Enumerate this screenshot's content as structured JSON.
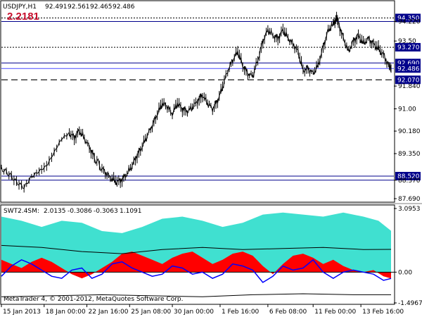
{
  "chart_data": [
    {
      "type": "candlestick",
      "header": {
        "symbol_tf": "USDJPY,H1",
        "ohlc": [
          "92.491",
          "92.561",
          "92.465",
          "92.486"
        ],
        "big_value": "2.2181"
      },
      "ylim": [
        87.69,
        94.7
      ],
      "y_ticks": [
        {
          "value": 94.35,
          "label": "94.350",
          "box": true
        },
        {
          "value": 94.22,
          "label": "94.220",
          "box": false
        },
        {
          "value": 93.5,
          "label": "93.50",
          "box": false
        },
        {
          "value": 93.27,
          "label": "93.270",
          "box": true
        },
        {
          "value": 92.69,
          "label": "92.690",
          "box": true
        },
        {
          "value": 92.486,
          "label": "92.486",
          "box": true
        },
        {
          "value": 92.07,
          "label": "92.070",
          "box": true
        },
        {
          "value": 91.84,
          "label": "91.840",
          "box": false
        },
        {
          "value": 91.0,
          "label": "91.00",
          "box": false
        },
        {
          "value": 90.18,
          "label": "90.180",
          "box": false
        },
        {
          "value": 89.35,
          "label": "89.350",
          "box": false
        },
        {
          "value": 88.52,
          "label": "88.520",
          "box": true
        },
        {
          "value": 88.37,
          "label": "88.370",
          "box": false
        },
        {
          "value": 87.69,
          "label": "87.690",
          "box": false
        }
      ],
      "levels": [
        {
          "value": 94.35,
          "style": "dotted",
          "color": "#000000"
        },
        {
          "value": 94.22,
          "style": "solid",
          "color": "#00008b"
        },
        {
          "value": 93.27,
          "style": "dotted",
          "color": "#000000"
        },
        {
          "value": 92.69,
          "style": "solid",
          "color": "#00008b"
        },
        {
          "value": 92.486,
          "style": "solid",
          "color": "#4a4aff"
        },
        {
          "value": 92.07,
          "style": "dashed",
          "color": "#000000"
        },
        {
          "value": 88.52,
          "style": "solid",
          "color": "#00008b"
        },
        {
          "value": 88.37,
          "style": "solid",
          "color": "#00008b"
        }
      ],
      "price_path": [
        [
          0,
          88.8
        ],
        [
          3,
          88.6
        ],
        [
          6,
          88.3
        ],
        [
          9,
          88.1
        ],
        [
          12,
          88.5
        ],
        [
          15,
          88.7
        ],
        [
          18,
          88.9
        ],
        [
          21,
          89.4
        ],
        [
          24,
          89.9
        ],
        [
          27,
          90.1
        ],
        [
          29,
          89.95
        ],
        [
          31,
          90.2
        ],
        [
          33,
          89.9
        ],
        [
          35,
          89.6
        ],
        [
          37,
          89.2
        ],
        [
          40,
          88.8
        ],
        [
          42,
          88.6
        ],
        [
          44,
          88.4
        ],
        [
          46,
          88.3
        ],
        [
          48,
          88.4
        ],
        [
          50,
          88.6
        ],
        [
          52,
          88.9
        ],
        [
          54,
          89.3
        ],
        [
          56,
          89.6
        ],
        [
          58,
          90.0
        ],
        [
          60,
          90.4
        ],
        [
          62,
          90.8
        ],
        [
          64,
          91.2
        ],
        [
          66,
          91.1
        ],
        [
          68,
          90.8
        ],
        [
          70,
          91.2
        ],
        [
          72,
          91.0
        ],
        [
          74,
          90.9
        ],
        [
          76,
          91.05
        ],
        [
          78,
          91.3
        ],
        [
          80,
          91.5
        ],
        [
          82,
          91.2
        ],
        [
          84,
          91.0
        ],
        [
          86,
          91.3
        ],
        [
          88,
          91.8
        ],
        [
          90,
          92.4
        ],
        [
          92,
          92.8
        ],
        [
          94,
          93.1
        ],
        [
          96,
          92.6
        ],
        [
          98,
          92.3
        ],
        [
          100,
          92.2
        ],
        [
          102,
          92.8
        ],
        [
          104,
          93.5
        ],
        [
          106,
          93.9
        ],
        [
          108,
          93.7
        ],
        [
          110,
          93.6
        ],
        [
          112,
          93.9
        ],
        [
          114,
          93.6
        ],
        [
          116,
          93.4
        ],
        [
          118,
          93.1
        ],
        [
          120,
          92.4
        ],
        [
          122,
          92.5
        ],
        [
          124,
          92.3
        ],
        [
          126,
          92.6
        ],
        [
          128,
          93.3
        ],
        [
          130,
          93.9
        ],
        [
          132,
          94.1
        ],
        [
          133,
          94.35
        ],
        [
          134,
          94.2
        ],
        [
          136,
          93.6
        ],
        [
          138,
          93.1
        ],
        [
          140,
          93.5
        ],
        [
          142,
          93.7
        ],
        [
          144,
          93.4
        ],
        [
          146,
          93.6
        ],
        [
          148,
          93.4
        ],
        [
          150,
          93.2
        ],
        [
          152,
          93.0
        ],
        [
          154,
          92.6
        ],
        [
          155,
          92.486
        ]
      ],
      "x_ticks": [
        {
          "pos": 0,
          "label": "15 Jan 2013"
        },
        {
          "pos": 17,
          "label": "18 Jan 00:00"
        },
        {
          "pos": 34,
          "label": "22 Jan 16:00"
        },
        {
          "pos": 51,
          "label": "25 Jan 08:00"
        },
        {
          "pos": 68,
          "label": "30 Jan 00:00"
        },
        {
          "pos": 87,
          "label": "1 Feb 16:00"
        },
        {
          "pos": 106,
          "label": "6 Feb 08:00"
        },
        {
          "pos": 124,
          "label": "11 Feb 00:00"
        },
        {
          "pos": 143,
          "label": "13 Feb 16:00"
        }
      ],
      "x_max": 155
    },
    {
      "type": "area",
      "header": {
        "name": "SWT2.4SM:",
        "values": [
          "2.0135",
          "-0.3086",
          "-0.3063",
          "1.1091"
        ]
      },
      "ylim": [
        -1.4967,
        3.0953
      ],
      "y_ticks": [
        {
          "value": 3.0953,
          "label": "3.0953"
        },
        {
          "value": 0.0,
          "label": "0.00"
        },
        {
          "value": -1.4967,
          "label": "-1.4967"
        }
      ],
      "series": [
        {
          "role": "upper-band",
          "color": "#40e0d0",
          "values": [
            [
              0,
              2.7
            ],
            [
              8,
              2.5
            ],
            [
              16,
              2.2
            ],
            [
              24,
              2.5
            ],
            [
              32,
              2.4
            ],
            [
              40,
              2.0
            ],
            [
              48,
              1.9
            ],
            [
              56,
              2.2
            ],
            [
              64,
              2.6
            ],
            [
              72,
              2.7
            ],
            [
              80,
              2.5
            ],
            [
              88,
              2.2
            ],
            [
              96,
              2.4
            ],
            [
              104,
              2.8
            ],
            [
              112,
              2.9
            ],
            [
              120,
              2.8
            ],
            [
              128,
              2.7
            ],
            [
              136,
              2.9
            ],
            [
              144,
              2.7
            ],
            [
              150,
              2.5
            ],
            [
              155,
              2.0135
            ]
          ]
        },
        {
          "role": "mid-line",
          "color": "#000000",
          "values": [
            [
              0,
              1.3
            ],
            [
              16,
              1.2
            ],
            [
              32,
              1.0
            ],
            [
              48,
              0.9
            ],
            [
              64,
              1.1
            ],
            [
              80,
              1.2
            ],
            [
              96,
              1.1
            ],
            [
              112,
              1.15
            ],
            [
              128,
              1.2
            ],
            [
              144,
              1.1
            ],
            [
              155,
              1.1091
            ]
          ]
        },
        {
          "role": "histogram",
          "color": "#ff0000",
          "values": [
            [
              0,
              0.6
            ],
            [
              4,
              0.4
            ],
            [
              8,
              0.2
            ],
            [
              12,
              0.5
            ],
            [
              16,
              0.7
            ],
            [
              20,
              0.5
            ],
            [
              24,
              0.2
            ],
            [
              28,
              -0.1
            ],
            [
              32,
              -0.3
            ],
            [
              36,
              -0.1
            ],
            [
              40,
              0.2
            ],
            [
              44,
              0.5
            ],
            [
              48,
              0.9
            ],
            [
              52,
              1.0
            ],
            [
              56,
              0.8
            ],
            [
              60,
              0.6
            ],
            [
              64,
              0.4
            ],
            [
              68,
              0.7
            ],
            [
              72,
              0.9
            ],
            [
              76,
              1.0
            ],
            [
              80,
              0.7
            ],
            [
              84,
              0.4
            ],
            [
              88,
              0.6
            ],
            [
              92,
              0.9
            ],
            [
              96,
              1.0
            ],
            [
              100,
              0.8
            ],
            [
              104,
              0.3
            ],
            [
              108,
              -0.1
            ],
            [
              112,
              0.4
            ],
            [
              116,
              0.8
            ],
            [
              120,
              0.9
            ],
            [
              124,
              0.7
            ],
            [
              128,
              0.4
            ],
            [
              132,
              0.6
            ],
            [
              136,
              0.3
            ],
            [
              140,
              0.1
            ],
            [
              144,
              0.0
            ],
            [
              148,
              0.1
            ],
            [
              152,
              -0.2
            ],
            [
              155,
              -0.3063
            ]
          ]
        },
        {
          "role": "signal-line",
          "color": "#0000ff",
          "values": [
            [
              0,
              -0.2
            ],
            [
              4,
              0.3
            ],
            [
              8,
              0.6
            ],
            [
              12,
              0.4
            ],
            [
              16,
              0.1
            ],
            [
              20,
              -0.2
            ],
            [
              24,
              -0.3
            ],
            [
              28,
              0.1
            ],
            [
              32,
              0.2
            ],
            [
              36,
              -0.3
            ],
            [
              40,
              -0.1
            ],
            [
              44,
              0.4
            ],
            [
              48,
              0.5
            ],
            [
              52,
              0.2
            ],
            [
              56,
              0.0
            ],
            [
              60,
              -0.2
            ],
            [
              64,
              -0.1
            ],
            [
              68,
              0.3
            ],
            [
              72,
              0.2
            ],
            [
              76,
              -0.1
            ],
            [
              80,
              0.0
            ],
            [
              84,
              -0.3
            ],
            [
              88,
              -0.1
            ],
            [
              92,
              0.4
            ],
            [
              96,
              0.3
            ],
            [
              100,
              0.1
            ],
            [
              104,
              -0.5
            ],
            [
              108,
              -0.2
            ],
            [
              112,
              0.3
            ],
            [
              116,
              0.1
            ],
            [
              120,
              0.2
            ],
            [
              124,
              0.6
            ],
            [
              128,
              0.0
            ],
            [
              132,
              -0.3
            ],
            [
              136,
              0.0
            ],
            [
              140,
              0.1
            ],
            [
              144,
              0.0
            ],
            [
              148,
              -0.1
            ],
            [
              152,
              -0.4
            ],
            [
              155,
              -0.3086
            ]
          ]
        },
        {
          "role": "lower-line",
          "color": "#000000",
          "values": [
            [
              0,
              -1.2
            ],
            [
              20,
              -1.15
            ],
            [
              40,
              -1.1
            ],
            [
              60,
              -1.15
            ],
            [
              80,
              -1.2
            ],
            [
              100,
              -1.1
            ],
            [
              120,
              -1.05
            ],
            [
              140,
              -1.1
            ],
            [
              155,
              -1.1
            ]
          ]
        }
      ],
      "copyright": "MetaTrader 4, © 2001-2012, MetaQuotes Software Corp."
    }
  ]
}
